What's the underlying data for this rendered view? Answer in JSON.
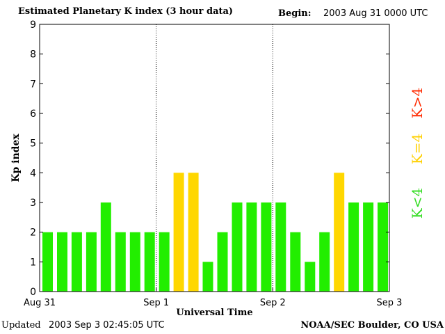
{
  "header": {
    "title": "Estimated Planetary K index (3 hour data)",
    "begin_label": "Begin:",
    "begin_value": "2003 Aug 31 0000 UTC"
  },
  "footer": {
    "updated_label": "Updated",
    "updated_value": "2003 Sep  3 02:45:05 UTC",
    "credit": "NOAA/SEC Boulder, CO USA"
  },
  "legend": {
    "low": "K<4",
    "equal": "K=4",
    "high": "K>4"
  },
  "colors": {
    "low": "#22ee00",
    "equal": "#ffd700",
    "high": "#ff2a00"
  },
  "chart_data": {
    "type": "bar",
    "title": "Estimated Planetary K index (3 hour data)",
    "xlabel": "Universal Time",
    "ylabel": "Kp index",
    "ylim": [
      0,
      9
    ],
    "yticks": [
      0,
      1,
      2,
      3,
      4,
      5,
      6,
      7,
      8,
      9
    ],
    "xtick_labels": [
      "Aug 31",
      "Sep 1",
      "Sep 2",
      "Sep 3"
    ],
    "categories": [
      "Aug 31 00",
      "Aug 31 03",
      "Aug 31 06",
      "Aug 31 09",
      "Aug 31 12",
      "Aug 31 15",
      "Aug 31 18",
      "Aug 31 21",
      "Sep 1 00",
      "Sep 1 03",
      "Sep 1 06",
      "Sep 1 09",
      "Sep 1 12",
      "Sep 1 15",
      "Sep 1 18",
      "Sep 1 21",
      "Sep 2 00",
      "Sep 2 03",
      "Sep 2 06",
      "Sep 2 09",
      "Sep 2 12",
      "Sep 2 15",
      "Sep 2 18",
      "Sep 2 21"
    ],
    "values": [
      2,
      2,
      2,
      2,
      3,
      2,
      2,
      2,
      2,
      4,
      4,
      1,
      2,
      3,
      3,
      3,
      3,
      2,
      1,
      2,
      4,
      3,
      3,
      3
    ],
    "day_dividers": [
      "Sep 1",
      "Sep 2"
    ],
    "grid": false
  }
}
